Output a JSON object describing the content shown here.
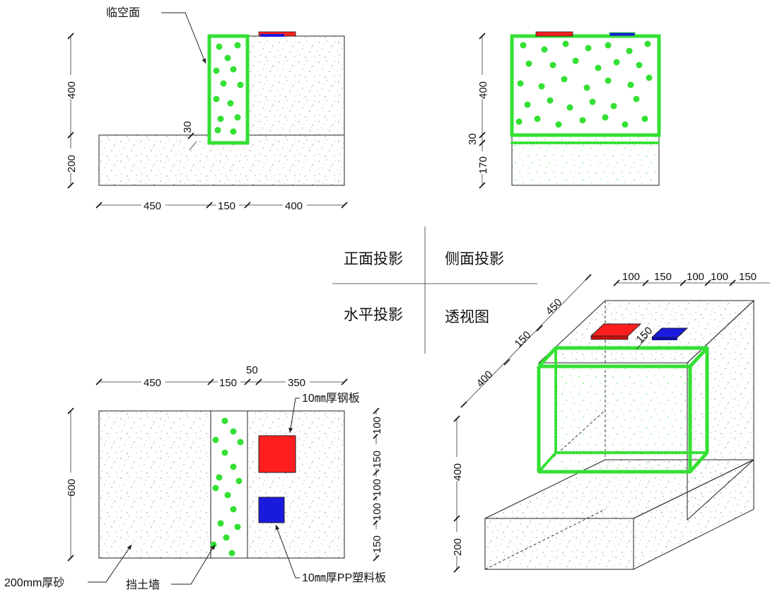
{
  "center_labels": {
    "front": "正面投影",
    "side": "侧面投影",
    "plan": "水平投影",
    "perspective": "透视图"
  },
  "front_view": {
    "callout": "临空面",
    "h_dims": [
      "450",
      "150",
      "400"
    ],
    "v_dims": [
      "400",
      "200"
    ],
    "gap_dim": "30"
  },
  "side_view": {
    "v_dims": [
      "400",
      "30",
      "170"
    ]
  },
  "plan_view": {
    "h_dims": [
      "450",
      "150",
      "50",
      "350"
    ],
    "v_dim_left": "600",
    "v_dims_right": [
      "100",
      "150",
      "100",
      "100",
      "150"
    ],
    "steel_label": "10㎜厚钢板",
    "plastic_label": "10㎜厚PP塑料板",
    "sand_label": "200mm厚砂",
    "wall_label": "挡土墙"
  },
  "perspective_view": {
    "top_dims": [
      "100",
      "150",
      "100",
      "100",
      "150"
    ],
    "diag_dims": [
      "450",
      "150",
      "400"
    ],
    "plate_gap": "150",
    "v_dims": [
      "400",
      "200"
    ]
  },
  "colors": {
    "green": "#33e033",
    "steel_red": "#ff1e1e",
    "plastic_blue": "#1a1adf",
    "speckle": "#555555"
  }
}
